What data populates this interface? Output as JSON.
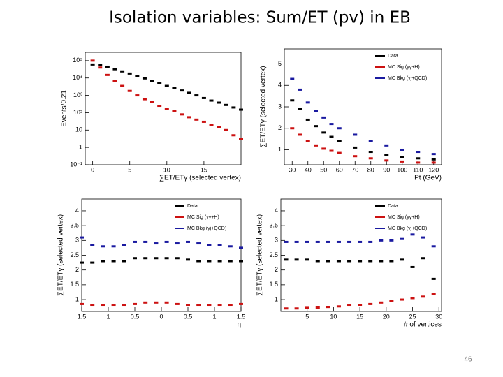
{
  "title": "Isolation variables:  Sum/ET (pv) in EB",
  "page_number": "46",
  "chart_data": [
    {
      "type": "scatter",
      "y_scale": "log",
      "xlabel": "∑ET/ETγ (selected vertex)",
      "ylabel": "Events/0.21",
      "xlim": [
        -1,
        20
      ],
      "xticks": [
        0,
        5,
        10,
        15
      ],
      "ylim": [
        0.1,
        300000
      ],
      "yticks": [
        {
          "value": 0.1,
          "label": "10⁻¹"
        },
        1,
        10,
        {
          "value": 100,
          "label": "10²"
        },
        {
          "value": 1000,
          "label": "10³"
        },
        {
          "value": 10000,
          "label": "10⁴"
        },
        {
          "value": 100000,
          "label": "10⁵"
        }
      ],
      "x": [
        0,
        1,
        2,
        3,
        4,
        5,
        6,
        7,
        8,
        9,
        10,
        11,
        12,
        13,
        14,
        15,
        16,
        17,
        18,
        19,
        20
      ],
      "series": [
        {
          "color": "#000000",
          "values": [
            60000,
            55000,
            45000,
            32000,
            24000,
            18000,
            13000,
            9500,
            7000,
            5000,
            3500,
            2600,
            1900,
            1400,
            1000,
            700,
            500,
            380,
            280,
            200,
            150
          ]
        },
        {
          "color": "#cc1111",
          "values": [
            100000,
            40000,
            15000,
            7000,
            3500,
            1800,
            1000,
            600,
            400,
            250,
            170,
            120,
            80,
            55,
            40,
            30,
            20,
            15,
            10,
            5,
            3
          ]
        }
      ]
    },
    {
      "type": "scatter",
      "xlabel": "Pt (GeV)",
      "ylabel": "∑ET/ETγ (selected vertex)",
      "legend": "top-right",
      "xlim": [
        25,
        125
      ],
      "xticks": [
        30,
        40,
        50,
        60,
        70,
        80,
        90,
        100,
        110,
        120
      ],
      "ylim": [
        0.3,
        5.7
      ],
      "yticks": [
        1,
        2,
        3,
        4,
        5
      ],
      "x": [
        30,
        35,
        40,
        45,
        50,
        55,
        60,
        70,
        80,
        90,
        100,
        110,
        120
      ],
      "series": [
        {
          "name": "Data",
          "color": "#000000",
          "values": [
            3.3,
            2.9,
            2.4,
            2.1,
            1.8,
            1.6,
            1.4,
            1.1,
            0.9,
            0.75,
            0.65,
            0.6,
            0.55
          ]
        },
        {
          "name": "MC Sig (γγ+H)",
          "color": "#cc1111",
          "values": [
            2.0,
            1.7,
            1.4,
            1.2,
            1.05,
            0.95,
            0.85,
            0.7,
            0.6,
            0.5,
            0.45,
            0.4,
            0.4
          ]
        },
        {
          "name": "MC Bkg (γj+QCD)",
          "color": "#1a1aa0",
          "values": [
            4.3,
            3.8,
            3.2,
            2.8,
            2.5,
            2.2,
            2.0,
            1.7,
            1.4,
            1.2,
            1.0,
            0.9,
            0.8
          ]
        }
      ]
    },
    {
      "type": "scatter",
      "xlabel": "η",
      "ylabel": "∑ET/ETγ (selected vertex)",
      "legend": "top-right",
      "xlim": [
        -1.5,
        1.5
      ],
      "xticks": [
        {
          "value": -1.5,
          "label": "1.5"
        },
        {
          "value": -1,
          "label": "1"
        },
        {
          "value": -0.5,
          "label": "0.5"
        },
        0,
        0.5,
        1,
        1.5
      ],
      "ylim": [
        0.6,
        4.4
      ],
      "yticks": [
        1,
        1.5,
        2,
        2.5,
        3,
        3.5,
        4
      ],
      "x": [
        -1.5,
        -1.3,
        -1.1,
        -0.9,
        -0.7,
        -0.5,
        -0.3,
        -0.1,
        0.1,
        0.3,
        0.5,
        0.7,
        0.9,
        1.1,
        1.3,
        1.5
      ],
      "series": [
        {
          "name": "Data",
          "color": "#000000",
          "values": [
            2.25,
            2.25,
            2.3,
            2.3,
            2.3,
            2.4,
            2.4,
            2.4,
            2.4,
            2.4,
            2.35,
            2.3,
            2.3,
            2.3,
            2.3,
            2.3
          ]
        },
        {
          "name": "MC Sig (γγ+H)",
          "color": "#cc1111",
          "values": [
            0.85,
            0.8,
            0.8,
            0.8,
            0.8,
            0.85,
            0.9,
            0.9,
            0.9,
            0.85,
            0.8,
            0.8,
            0.8,
            0.8,
            0.8,
            0.85
          ]
        },
        {
          "name": "MC Bkg (γj+QCD)",
          "color": "#1a1aa0",
          "values": [
            3.1,
            2.85,
            2.8,
            2.8,
            2.85,
            2.95,
            2.95,
            2.9,
            2.95,
            2.9,
            2.95,
            2.9,
            2.85,
            2.85,
            2.8,
            2.75
          ]
        }
      ]
    },
    {
      "type": "scatter",
      "xlabel": "# of vertices",
      "ylabel": "∑ET/ETγ (selected vertex)",
      "legend": "top-right",
      "xlim": [
        0,
        30.5
      ],
      "xticks": [
        5,
        10,
        15,
        20,
        25,
        30
      ],
      "ylim": [
        0.6,
        4.4
      ],
      "yticks": [
        1,
        1.5,
        2,
        2.5,
        3,
        3.5,
        4
      ],
      "x": [
        1,
        3,
        5,
        7,
        9,
        11,
        13,
        15,
        17,
        19,
        21,
        23,
        25,
        27,
        29
      ],
      "series": [
        {
          "name": "Data",
          "color": "#000000",
          "values": [
            2.35,
            2.35,
            2.35,
            2.3,
            2.3,
            2.3,
            2.3,
            2.3,
            2.3,
            2.3,
            2.3,
            2.35,
            2.1,
            2.4,
            1.7
          ]
        },
        {
          "name": "MC Sig (γγ+H)",
          "color": "#cc1111",
          "values": [
            0.7,
            0.7,
            0.72,
            0.73,
            0.75,
            0.77,
            0.8,
            0.82,
            0.85,
            0.9,
            0.95,
            1.0,
            1.05,
            1.1,
            1.2
          ]
        },
        {
          "name": "MC Bkg (γj+QCD)",
          "color": "#1a1aa0",
          "values": [
            2.95,
            2.95,
            2.95,
            2.95,
            2.95,
            2.95,
            2.95,
            2.95,
            2.95,
            3.0,
            3.0,
            3.05,
            3.2,
            3.1,
            2.8
          ]
        }
      ]
    }
  ]
}
